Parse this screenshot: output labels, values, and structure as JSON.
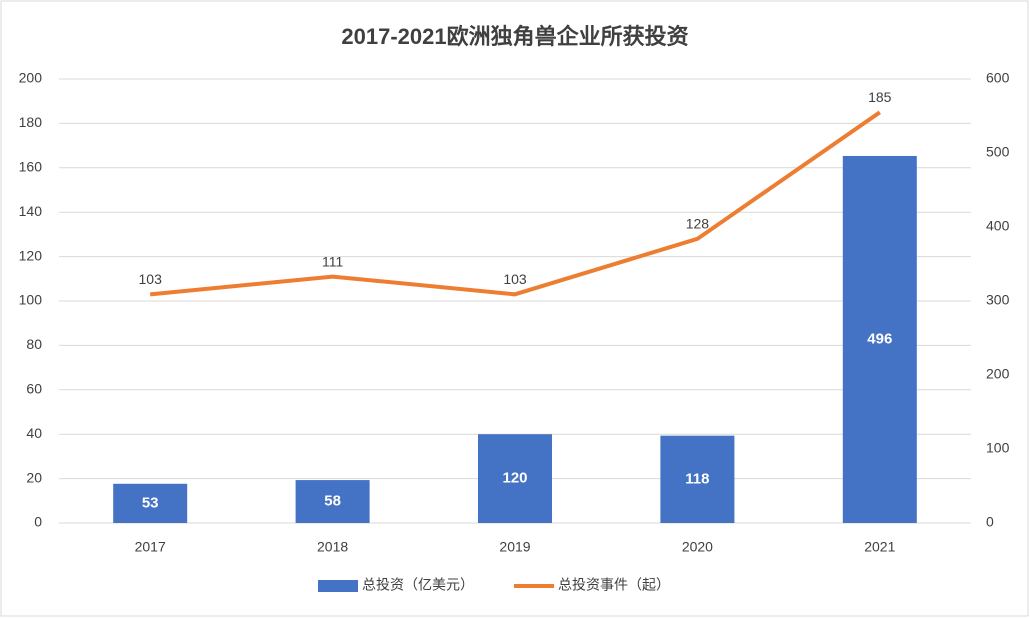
{
  "chart_data": {
    "type": "combo",
    "title": "2017-2021欧洲独角兽企业所获投资",
    "categories": [
      "2017",
      "2018",
      "2019",
      "2020",
      "2021"
    ],
    "series": [
      {
        "name": "总投资（亿美元）",
        "type": "bar",
        "axis": "y2",
        "color": "#4472c4",
        "values": [
          53,
          58,
          120,
          118,
          496
        ]
      },
      {
        "name": "总投资事件（起）",
        "type": "line",
        "color": "#ed7d31",
        "values": [
          103,
          111,
          103,
          128,
          185
        ]
      }
    ],
    "ylim": [
      0,
      200
    ],
    "yticks": [
      0,
      20,
      40,
      60,
      80,
      100,
      120,
      140,
      160,
      180,
      200
    ],
    "y2lim": [
      0,
      600
    ],
    "y2ticks": [
      0,
      100,
      200,
      300,
      400,
      500,
      600
    ],
    "grid": true,
    "legend": "bottom"
  }
}
